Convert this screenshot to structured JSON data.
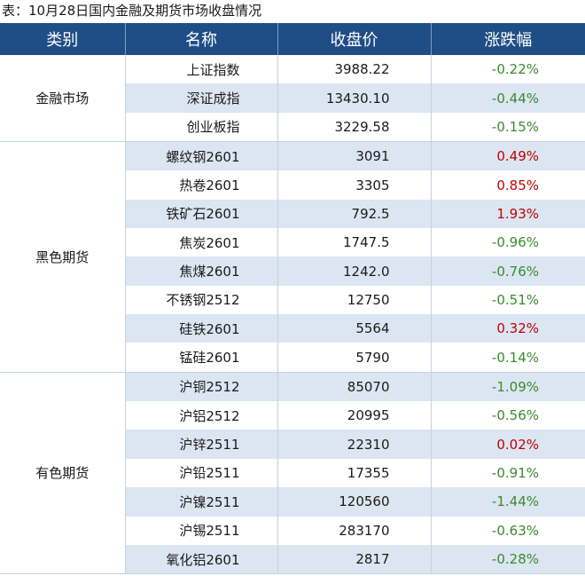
{
  "caption": "表：10月28日国内金融及期货市场收盘情况",
  "headers": [
    "类别",
    "名称",
    "收盘价",
    "涨跌幅"
  ],
  "colors": {
    "header_bg": "#1f4e86",
    "stripe_bg": "#dce6f2",
    "up": "#c00000",
    "down": "#3a8a2a"
  },
  "groups": [
    {
      "category": "金融市场",
      "rows": [
        {
          "name": "上证指数",
          "close": "3988.22",
          "change": "-0.22%",
          "dir": "down"
        },
        {
          "name": "深证成指",
          "close": "13430.10",
          "change": "-0.44%",
          "dir": "down"
        },
        {
          "name": "创业板指",
          "close": "3229.58",
          "change": "-0.15%",
          "dir": "down"
        }
      ]
    },
    {
      "category": "黑色期货",
      "rows": [
        {
          "name": "螺纹钢2601",
          "close": "3091",
          "change": "0.49%",
          "dir": "up"
        },
        {
          "name": "热卷2601",
          "close": "3305",
          "change": "0.85%",
          "dir": "up"
        },
        {
          "name": "铁矿石2601",
          "close": "792.5",
          "change": "1.93%",
          "dir": "up"
        },
        {
          "name": "焦炭2601",
          "close": "1747.5",
          "change": "-0.96%",
          "dir": "down"
        },
        {
          "name": "焦煤2601",
          "close": "1242.0",
          "change": "-0.76%",
          "dir": "down"
        },
        {
          "name": "不锈钢2512",
          "close": "12750",
          "change": "-0.51%",
          "dir": "down"
        },
        {
          "name": "硅铁2601",
          "close": "5564",
          "change": "0.32%",
          "dir": "up"
        },
        {
          "name": "锰硅2601",
          "close": "5790",
          "change": "-0.14%",
          "dir": "down"
        }
      ]
    },
    {
      "category": "有色期货",
      "rows": [
        {
          "name": "沪铜2512",
          "close": "85070",
          "change": "-1.09%",
          "dir": "down"
        },
        {
          "name": "沪铝2512",
          "close": "20995",
          "change": "-0.56%",
          "dir": "down"
        },
        {
          "name": "沪锌2511",
          "close": "22310",
          "change": "0.02%",
          "dir": "up"
        },
        {
          "name": "沪铅2511",
          "close": "17355",
          "change": "-0.91%",
          "dir": "down"
        },
        {
          "name": "沪镍2511",
          "close": "120560",
          "change": "-1.44%",
          "dir": "down"
        },
        {
          "name": "沪锡2511",
          "close": "283170",
          "change": "-0.63%",
          "dir": "down"
        },
        {
          "name": "氧化铝2601",
          "close": "2817",
          "change": "-0.28%",
          "dir": "down"
        }
      ]
    }
  ]
}
